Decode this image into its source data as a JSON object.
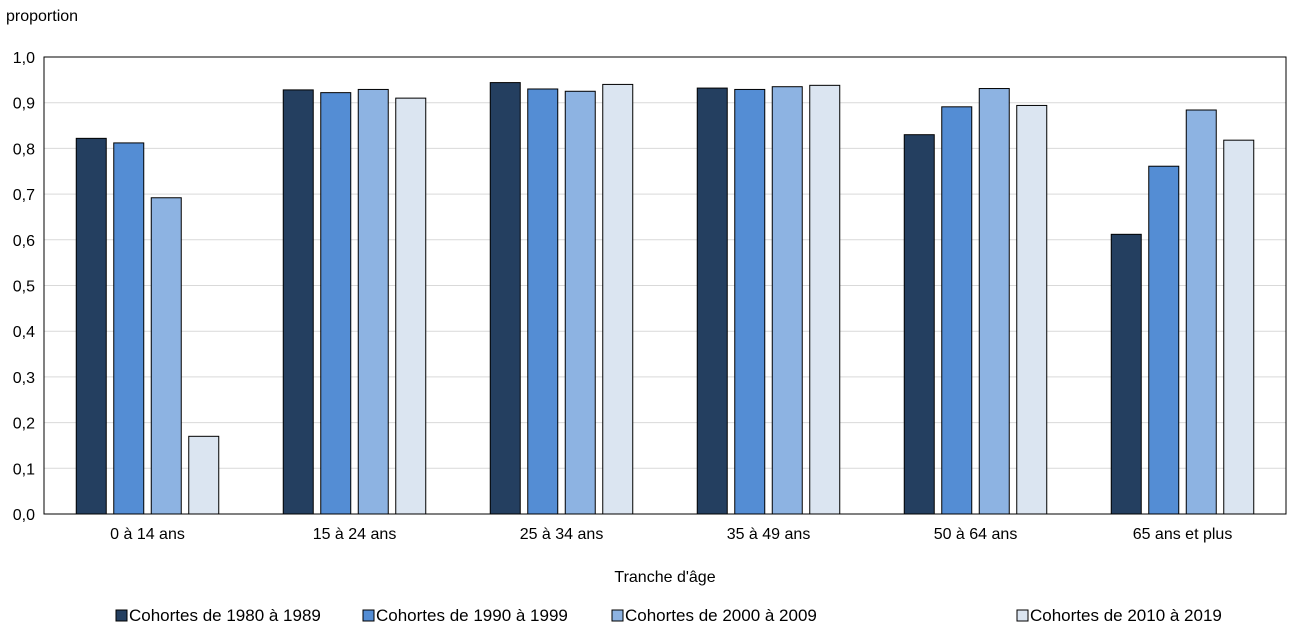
{
  "chart_data": {
    "type": "bar",
    "ylabel": "proportion",
    "xlabel": "Tranche d'âge",
    "ylim": [
      0,
      1.0
    ],
    "yticks": [
      "0,0",
      "0,1",
      "0,2",
      "0,3",
      "0,4",
      "0,5",
      "0,6",
      "0,7",
      "0,8",
      "0,9",
      "1,0"
    ],
    "grid": "horizontal",
    "legend_position": "bottom",
    "categories": [
      "0 à 14 ans",
      "15 à 24 ans",
      "25 à 34 ans",
      "35 à 49 ans",
      "50 à 64 ans",
      "65 ans et plus"
    ],
    "series": [
      {
        "name": "Cohortes de 1980 à 1989",
        "color": "#243f60",
        "values": [
          0.822,
          0.928,
          0.944,
          0.932,
          0.83,
          0.612
        ]
      },
      {
        "name": "Cohortes de 1990 à 1999",
        "color": "#548dd4",
        "values": [
          0.812,
          0.922,
          0.93,
          0.929,
          0.891,
          0.761
        ]
      },
      {
        "name": "Cohortes de 2000 à 2009",
        "color": "#8db3e2",
        "values": [
          0.692,
          0.929,
          0.925,
          0.935,
          0.931,
          0.884
        ]
      },
      {
        "name": "Cohortes de 2010 à 2019",
        "color": "#dbe5f1",
        "values": [
          0.17,
          0.91,
          0.94,
          0.938,
          0.894,
          0.818
        ]
      }
    ]
  }
}
